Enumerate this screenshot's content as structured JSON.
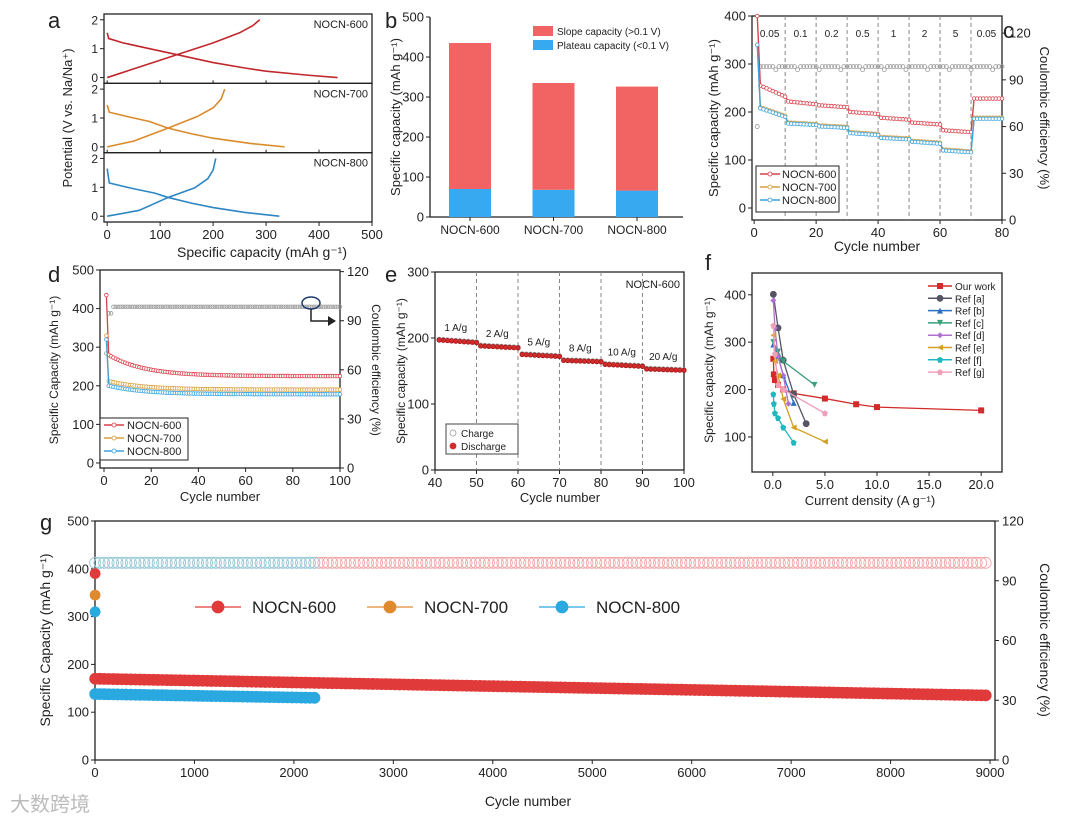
{
  "figure_labels": [
    "a",
    "b",
    "c",
    "d",
    "e",
    "f",
    "g"
  ],
  "watermark": "大数跨境",
  "chart_data": [
    {
      "id": "a",
      "type": "line",
      "xlabel": "Specific capacity (mAh g⁻¹)",
      "ylabel": "Potential (V vs. Na/Na⁺)",
      "xlim": [
        -6,
        500
      ],
      "xticks": [
        "0",
        "100",
        "200",
        "300",
        "400",
        "500"
      ],
      "subpanels": [
        {
          "label": "NOCN-600",
          "color": "#c0282d",
          "ylim": [
            -0.2,
            2.2
          ],
          "yticks": [
            "0",
            "1",
            "2"
          ],
          "discharge": [
            [
              0,
              1.55
            ],
            [
              3,
              1.35
            ],
            [
              30,
              1.2
            ],
            [
              80,
              1.0
            ],
            [
              130,
              0.8
            ],
            [
              200,
              0.52
            ],
            [
              260,
              0.33
            ],
            [
              300,
              0.22
            ],
            [
              380,
              0.08
            ],
            [
              435,
              0.0
            ]
          ],
          "charge": [
            [
              0,
              0.0
            ],
            [
              50,
              0.3
            ],
            [
              130,
              0.78
            ],
            [
              200,
              1.2
            ],
            [
              250,
              1.55
            ],
            [
              275,
              1.8
            ],
            [
              288,
              2.0
            ]
          ]
        },
        {
          "label": "NOCN-700",
          "color": "#d98b2b",
          "ylim": [
            -0.2,
            2.2
          ],
          "yticks": [
            "0",
            "1",
            "2"
          ],
          "discharge": [
            [
              0,
              1.45
            ],
            [
              4,
              1.2
            ],
            [
              50,
              1.0
            ],
            [
              80,
              0.88
            ],
            [
              115,
              0.65
            ],
            [
              160,
              0.45
            ],
            [
              200,
              0.3
            ],
            [
              270,
              0.12
            ],
            [
              335,
              0.0
            ]
          ],
          "charge": [
            [
              0,
              0.0
            ],
            [
              50,
              0.2
            ],
            [
              115,
              0.65
            ],
            [
              170,
              1.05
            ],
            [
              200,
              1.35
            ],
            [
              215,
              1.65
            ],
            [
              222,
              2.0
            ]
          ]
        },
        {
          "label": "NOCN-800",
          "color": "#2d86c4",
          "ylim": [
            -0.2,
            2.2
          ],
          "yticks": [
            "0",
            "1",
            "2"
          ],
          "discharge": [
            [
              0,
              1.65
            ],
            [
              4,
              1.15
            ],
            [
              50,
              0.95
            ],
            [
              90,
              0.8
            ],
            [
              115,
              0.65
            ],
            [
              160,
              0.45
            ],
            [
              200,
              0.3
            ],
            [
              260,
              0.13
            ],
            [
              325,
              0.0
            ]
          ],
          "charge": [
            [
              0,
              0.0
            ],
            [
              60,
              0.2
            ],
            [
              115,
              0.65
            ],
            [
              165,
              0.98
            ],
            [
              190,
              1.3
            ],
            [
              200,
              1.6
            ],
            [
              205,
              2.0
            ]
          ]
        }
      ]
    },
    {
      "id": "b",
      "type": "bar",
      "stacked": true,
      "categories": [
        "NOCN-600",
        "NOCN-700",
        "NOCN-800"
      ],
      "series": [
        {
          "name": "Plateau capacity (<0.1 V)",
          "color": "#36a9f0",
          "values": [
            70,
            68,
            66
          ]
        },
        {
          "name": "Slope capacity (>0.1 V)",
          "color": "#f26464",
          "values": [
            365,
            267,
            260
          ]
        }
      ],
      "legend_order": [
        1,
        0
      ],
      "ylabel": "Specific capacity (mAh g⁻¹)",
      "ylim": [
        0,
        500
      ],
      "yticks": [
        "0",
        "100",
        "200",
        "300",
        "400",
        "500"
      ]
    },
    {
      "id": "c",
      "type": "line",
      "xlabel": "Cycle number",
      "ylabel": "Specific capacity (mAh g⁻¹)",
      "ylabel_right": "Coulombic efficiency (%)",
      "xlim": [
        -0.7,
        80
      ],
      "ylim": [
        -25,
        400
      ],
      "ylim_right": [
        0,
        131
      ],
      "xticks": [
        "0",
        "20",
        "40",
        "60",
        "80"
      ],
      "yticks": [
        "0",
        "100",
        "200",
        "300",
        "400"
      ],
      "yticks_right": [
        "0",
        "30",
        "60",
        "90",
        "120"
      ],
      "segment_bounds": [
        0,
        10,
        20,
        30,
        40,
        50,
        60,
        70,
        80
      ],
      "rate_labels": [
        "0.05",
        "0.1",
        "0.2",
        "0.5",
        "1",
        "2",
        "5",
        "0.05"
      ],
      "series": [
        {
          "name": "NOCN-600",
          "color": "#d9404a",
          "first": 400,
          "steps": [
            [
              258,
              232
            ],
            [
              222,
              216
            ],
            [
              214,
              210
            ],
            [
              200,
              196
            ],
            [
              188,
              184
            ],
            [
              178,
              174
            ],
            [
              162,
              158
            ],
            [
              228,
              228
            ]
          ]
        },
        {
          "name": "NOCN-700",
          "color": "#d9a040",
          "first": 340,
          "steps": [
            [
              212,
              192
            ],
            [
              178,
              175
            ],
            [
              172,
              169
            ],
            [
              158,
              154
            ],
            [
              148,
              145
            ],
            [
              140,
              136
            ],
            [
              122,
              118
            ],
            [
              188,
              188
            ]
          ]
        },
        {
          "name": "NOCN-800",
          "color": "#3aa4dc",
          "first": 340,
          "steps": [
            [
              210,
              190
            ],
            [
              176,
              173
            ],
            [
              170,
              167
            ],
            [
              156,
              152
            ],
            [
              146,
              143
            ],
            [
              138,
              134
            ],
            [
              120,
              116
            ],
            [
              186,
              186
            ]
          ]
        }
      ],
      "coulombic_efficiency": {
        "first": 60,
        "value": 98.5,
        "color": "#999999"
      }
    },
    {
      "id": "d",
      "type": "line",
      "xlabel": "Cycle number",
      "ylabel": "Specific Capacity (mAh g⁻¹)",
      "ylabel_right": "Coulombic efficiency (%)",
      "xlim": [
        -1.7,
        100
      ],
      "ylim": [
        -13,
        500
      ],
      "ylim_right": [
        0,
        121
      ],
      "xticks": [
        "0",
        "20",
        "40",
        "60",
        "80",
        "100"
      ],
      "yticks": [
        "0",
        "100",
        "200",
        "300",
        "400",
        "500"
      ],
      "yticks_right": [
        "0",
        "30",
        "60",
        "90",
        "120"
      ],
      "series": [
        {
          "name": "NOCN-600",
          "color": "#d9404a",
          "first": 435,
          "start": 280,
          "end": 225
        },
        {
          "name": "NOCN-700",
          "color": "#d9a040",
          "first": 330,
          "start": 212,
          "end": 190
        },
        {
          "name": "NOCN-800",
          "color": "#3aa4dc",
          "first": 320,
          "start": 200,
          "end": 178
        }
      ],
      "coulombic_efficiency": {
        "first": 70,
        "value": 98.5,
        "color": "#999999"
      }
    },
    {
      "id": "e",
      "type": "scatter",
      "title": "NOCN-600",
      "xlabel": "Cycle number",
      "ylabel": "Specific capacity (mAh g⁻¹)",
      "xlim": [
        40,
        100
      ],
      "ylim": [
        0,
        300
      ],
      "xticks": [
        "40",
        "50",
        "60",
        "70",
        "80",
        "90",
        "100"
      ],
      "yticks": [
        "0",
        "100",
        "200",
        "300"
      ],
      "segment_bounds": [
        40,
        50,
        60,
        70,
        80,
        90,
        100
      ],
      "rate_labels": [
        "1 A/g",
        "2 A/g",
        "5 A/g",
        "8 A/g",
        "10 A/g",
        "20 A/g"
      ],
      "discharge_steps": [
        [
          197,
          193
        ],
        [
          188,
          185
        ],
        [
          175,
          172
        ],
        [
          166,
          164
        ],
        [
          160,
          157
        ],
        [
          153,
          151
        ]
      ],
      "legend": [
        {
          "name": "Charge",
          "color": "#999999"
        },
        {
          "name": "Discharge",
          "color": "#d42a2a"
        }
      ]
    },
    {
      "id": "f",
      "type": "line",
      "xlabel": "Current density (A g⁻¹)",
      "ylabel": "Specific capacity (mAh g⁻¹)",
      "xlim": [
        -2,
        22
      ],
      "ylim": [
        26,
        446
      ],
      "xticks": [
        "0.0",
        "5.0",
        "10.0",
        "15.0",
        "20.0"
      ],
      "yticks": [
        "100",
        "200",
        "300",
        "400"
      ],
      "series": [
        {
          "name": "Our work",
          "color": "#d42a2a",
          "marker": "square",
          "points": [
            [
              0.05,
              265
            ],
            [
              0.1,
              232
            ],
            [
              0.2,
              220
            ],
            [
              0.5,
              210
            ],
            [
              1,
              200
            ],
            [
              2,
              192
            ],
            [
              5,
              181
            ],
            [
              8,
              169
            ],
            [
              10,
              163
            ],
            [
              20,
              156
            ]
          ]
        },
        {
          "name": "Ref [a]",
          "color": "#555566",
          "marker": "circle",
          "points": [
            [
              0.05,
              401
            ],
            [
              0.5,
              330
            ],
            [
              1,
              262
            ],
            [
              2,
              190
            ],
            [
              3.2,
              128
            ]
          ]
        },
        {
          "name": "Ref [b]",
          "color": "#2a6fc0",
          "marker": "triangle",
          "points": [
            [
              0.05,
              295
            ],
            [
              0.5,
              270
            ],
            [
              1,
              230
            ],
            [
              2,
              172
            ]
          ]
        },
        {
          "name": "Ref [c]",
          "color": "#3aa07a",
          "marker": "triangle-down",
          "points": [
            [
              0.05,
              300
            ],
            [
              0.5,
              280
            ],
            [
              1,
              260
            ],
            [
              4,
              210
            ]
          ]
        },
        {
          "name": "Ref [d]",
          "color": "#b070d0",
          "marker": "diamond",
          "points": [
            [
              0.05,
              388
            ],
            [
              0.2,
              330
            ],
            [
              0.5,
              270
            ],
            [
              1,
              230
            ],
            [
              1.5,
              170
            ]
          ]
        },
        {
          "name": "Ref [e]",
          "color": "#d4a020",
          "marker": "triangle-left",
          "points": [
            [
              0.05,
              315
            ],
            [
              0.2,
              260
            ],
            [
              0.5,
              230
            ],
            [
              1,
              180
            ],
            [
              2,
              120
            ],
            [
              5,
              90
            ]
          ]
        },
        {
          "name": "Ref [f]",
          "color": "#20b8c0",
          "marker": "star",
          "points": [
            [
              0.05,
              190
            ],
            [
              0.1,
              170
            ],
            [
              0.2,
              150
            ],
            [
              0.5,
              140
            ],
            [
              1,
              120
            ],
            [
              2,
              88
            ]
          ]
        },
        {
          "name": "Ref [g]",
          "color": "#f0a0b8",
          "marker": "pentagon",
          "points": [
            [
              0.05,
              335
            ],
            [
              0.2,
              275
            ],
            [
              0.5,
              210
            ],
            [
              1,
              200
            ],
            [
              5,
              150
            ]
          ]
        }
      ]
    },
    {
      "id": "g",
      "type": "scatter",
      "xlabel": "Cycle number",
      "ylabel": "Specific Capacity (mAh g⁻¹)",
      "ylabel_right": "Coulombic efficiency (%)",
      "xlim": [
        0,
        9050
      ],
      "ylim": [
        0,
        500
      ],
      "ylim_right": [
        0,
        120
      ],
      "xticks": [
        "0",
        "1000",
        "2000",
        "3000",
        "4000",
        "5000",
        "6000",
        "7000",
        "8000",
        "9000"
      ],
      "yticks": [
        "0",
        "100",
        "200",
        "300",
        "400",
        "500"
      ],
      "yticks_right": [
        "0",
        "30",
        "60",
        "90",
        "120"
      ],
      "series": [
        {
          "name": "NOCN-600",
          "color": "#e03a3a",
          "first": 390,
          "start": 170,
          "end": 135,
          "last_cycle": 9000,
          "ce": 99
        },
        {
          "name": "NOCN-700",
          "color": "#e08a30",
          "first": 345,
          "start": null,
          "end": null,
          "last_cycle": 1,
          "ce": null
        },
        {
          "name": "NOCN-800",
          "color": "#2aa8e0",
          "first": 310,
          "start": 138,
          "end": 130,
          "last_cycle": 2230,
          "ce": 99
        }
      ]
    }
  ]
}
